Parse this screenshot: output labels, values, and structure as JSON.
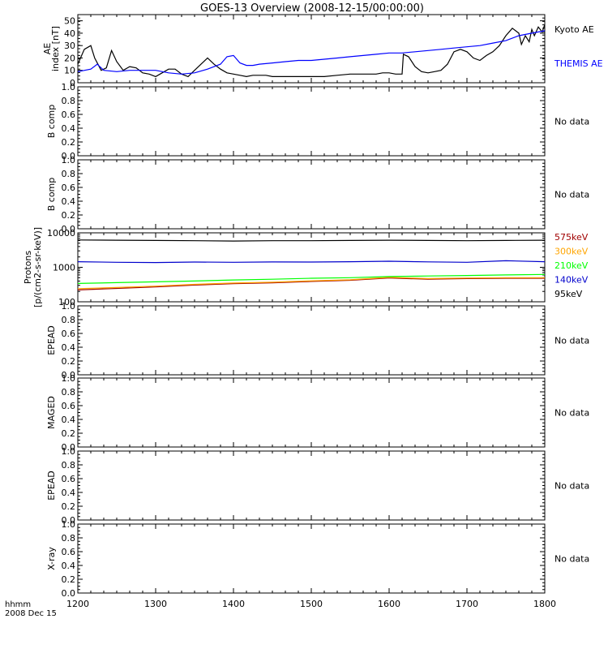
{
  "title": "GOES-13 Overview (2008-12-15/00:00:00)",
  "time_axis": {
    "label_line1": "hhmm",
    "label_line2": "2008 Dec 15",
    "ticks": [
      "1200",
      "1300",
      "1400",
      "1500",
      "1600",
      "1700",
      "1800"
    ],
    "range_hhmm": [
      1200,
      1800
    ]
  },
  "colors": {
    "black": "#000000",
    "blue": "#0000ff",
    "red": "#a00000",
    "orange": "#ffa500",
    "green": "#00ff00",
    "dark_blue": "#0000cc"
  },
  "chart_data": [
    {
      "type": "line",
      "ylabel": "AE index [nT]",
      "ylim": [
        0,
        55
      ],
      "yticks": [
        "0",
        "10",
        "20",
        "30",
        "40",
        "50"
      ],
      "series": [
        {
          "name": "Kyoto AE",
          "color": "#000000",
          "x": [
            1200,
            1205,
            1210,
            1213,
            1218,
            1222,
            1226,
            1230,
            1235,
            1240,
            1245,
            1250,
            1255,
            1300,
            1305,
            1310,
            1315,
            1320,
            1325,
            1330,
            1335,
            1340,
            1345,
            1350,
            1355,
            1400,
            1405,
            1410,
            1415,
            1420,
            1425,
            1430,
            1440,
            1450,
            1500,
            1510,
            1520,
            1530,
            1540,
            1550,
            1555,
            1600,
            1605,
            1610,
            1611,
            1615,
            1620,
            1625,
            1630,
            1635,
            1640,
            1645,
            1650,
            1655,
            1700,
            1705,
            1710,
            1715,
            1720,
            1725,
            1730,
            1735,
            1740,
            1742,
            1745,
            1748,
            1750,
            1752,
            1755,
            1758,
            1800
          ],
          "values": [
            15,
            27,
            30,
            20,
            10,
            12,
            26,
            17,
            10,
            13,
            12,
            8,
            7,
            5,
            8,
            11,
            11,
            7,
            5,
            10,
            15,
            20,
            15,
            11,
            8,
            7,
            6,
            5,
            6,
            6,
            6,
            5,
            5,
            5,
            5,
            5,
            6,
            7,
            7,
            7,
            8,
            8,
            7,
            7,
            23,
            21,
            13,
            9,
            8,
            9,
            10,
            15,
            25,
            27,
            25,
            20,
            18,
            22,
            25,
            30,
            38,
            44,
            40,
            31,
            38,
            33,
            43,
            38,
            45,
            41,
            47
          ]
        },
        {
          "name": "THEMIS AE",
          "color": "#0000ff",
          "x": [
            1200,
            1210,
            1215,
            1220,
            1230,
            1240,
            1250,
            1300,
            1310,
            1320,
            1330,
            1340,
            1350,
            1355,
            1400,
            1405,
            1410,
            1415,
            1420,
            1430,
            1440,
            1450,
            1500,
            1510,
            1520,
            1530,
            1540,
            1550,
            1600,
            1610,
            1620,
            1630,
            1640,
            1650,
            1700,
            1710,
            1720,
            1730,
            1740,
            1750,
            1800
          ],
          "values": [
            9,
            11,
            15,
            10,
            9,
            10,
            10,
            10,
            8,
            7,
            8,
            11,
            15,
            21,
            22,
            16,
            14,
            14,
            15,
            16,
            17,
            18,
            18,
            19,
            20,
            21,
            22,
            23,
            24,
            24,
            25,
            26,
            27,
            28,
            29,
            30,
            32,
            34,
            38,
            40,
            42
          ]
        }
      ]
    },
    {
      "type": "line",
      "ylabel": "B comp",
      "ylim": [
        0,
        1
      ],
      "yticks": [
        "0.0",
        "0.2",
        "0.4",
        "0.6",
        "0.8",
        "1.0"
      ],
      "note": "No data",
      "series": []
    },
    {
      "type": "line",
      "ylabel": "B comp",
      "ylim": [
        0,
        1
      ],
      "yticks": [
        "0.0",
        "0.2",
        "0.4",
        "0.6",
        "0.8",
        "1.0"
      ],
      "note": "No data",
      "series": []
    },
    {
      "type": "line",
      "ylabel": "Protons [p/(cm2-s-sr-keV)]",
      "ylim": [
        100,
        10000
      ],
      "yscale": "log",
      "yticks": [
        "100",
        "1000",
        "10000"
      ],
      "series": [
        {
          "name": "575keV",
          "color": "#a00000",
          "x": [
            1200,
            1230,
            1300,
            1330,
            1400,
            1430,
            1500,
            1530,
            1600,
            1630,
            1700,
            1730,
            1800
          ],
          "values": [
            220,
            245,
            270,
            305,
            335,
            355,
            390,
            420,
            490,
            450,
            470,
            480,
            480
          ]
        },
        {
          "name": "300keV",
          "color": "#ffa500",
          "x": [
            1200,
            1230,
            1300,
            1330,
            1400,
            1430,
            1500,
            1530,
            1600,
            1630,
            1700,
            1730,
            1800
          ],
          "values": [
            240,
            260,
            285,
            320,
            350,
            370,
            405,
            435,
            510,
            470,
            490,
            500,
            500
          ]
        },
        {
          "name": "210keV",
          "color": "#00ff00",
          "x": [
            1200,
            1230,
            1300,
            1330,
            1400,
            1430,
            1500,
            1530,
            1600,
            1630,
            1700,
            1730,
            1800
          ],
          "values": [
            340,
            360,
            380,
            400,
            430,
            450,
            480,
            500,
            540,
            560,
            580,
            600,
            620
          ]
        },
        {
          "name": "140keV",
          "color": "#0000cc",
          "x": [
            1200,
            1230,
            1300,
            1330,
            1400,
            1430,
            1500,
            1530,
            1600,
            1630,
            1700,
            1730,
            1800
          ],
          "values": [
            1450,
            1400,
            1380,
            1420,
            1400,
            1430,
            1420,
            1450,
            1500,
            1440,
            1400,
            1550,
            1450
          ]
        },
        {
          "name": "95keV",
          "color": "#000000",
          "x": [
            1200,
            1230,
            1300,
            1330,
            1400,
            1430,
            1500,
            1530,
            1600,
            1630,
            1700,
            1730,
            1800
          ],
          "values": [
            6200,
            6100,
            6000,
            5900,
            5800,
            5900,
            5900,
            6000,
            6100,
            6000,
            5900,
            6000,
            6100
          ]
        }
      ]
    },
    {
      "type": "line",
      "ylabel": "EPEAD",
      "ylim": [
        0,
        1
      ],
      "yticks": [
        "0.0",
        "0.2",
        "0.4",
        "0.6",
        "0.8",
        "1.0"
      ],
      "note": "No data",
      "series": []
    },
    {
      "type": "line",
      "ylabel": "MAGED",
      "ylim": [
        0,
        1
      ],
      "yticks": [
        "0.0",
        "0.2",
        "0.4",
        "0.6",
        "0.8",
        "1.0"
      ],
      "note": "No data",
      "series": []
    },
    {
      "type": "line",
      "ylabel": "EPEAD",
      "ylim": [
        0,
        1
      ],
      "yticks": [
        "0.0",
        "0.2",
        "0.4",
        "0.6",
        "0.8",
        "1.0"
      ],
      "note": "No data",
      "series": []
    },
    {
      "type": "line",
      "ylabel": "X-ray",
      "ylim": [
        0,
        1
      ],
      "yticks": [
        "0.0",
        "0.2",
        "0.4",
        "0.6",
        "0.8",
        "1.0"
      ],
      "note": "No data",
      "series": []
    }
  ]
}
